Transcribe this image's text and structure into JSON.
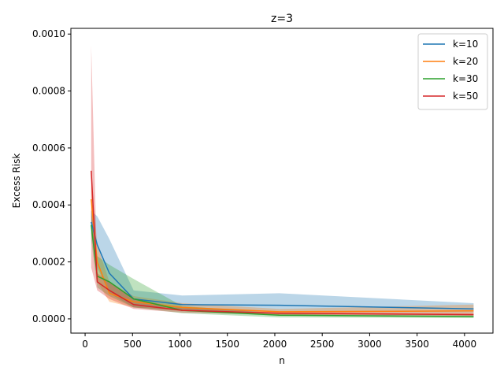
{
  "chart_data": {
    "type": "line",
    "title": "z=3",
    "xlabel": "n",
    "ylabel": "Excess Risk",
    "xlim": [
      -150,
      4300
    ],
    "ylim": [
      -5e-05,
      0.00102
    ],
    "x_ticks": [
      0,
      500,
      1000,
      1500,
      2000,
      2500,
      3000,
      3500,
      4000
    ],
    "x_tick_labels": [
      "0",
      "500",
      "1000",
      "1500",
      "2000",
      "2500",
      "3000",
      "3500",
      "4000"
    ],
    "y_ticks": [
      0,
      0.0002,
      0.0004,
      0.0006,
      0.0008,
      0.001
    ],
    "y_tick_labels": [
      "0.0000",
      "0.0002",
      "0.0004",
      "0.0006",
      "0.0008",
      "0.0010"
    ],
    "grid": false,
    "legend_position": "top-right",
    "x": [
      64,
      128,
      256,
      512,
      1024,
      2048,
      4096
    ],
    "series": [
      {
        "name": "k=10",
        "color": "#1f77b4",
        "values": [
          0.00034,
          0.00026,
          0.00016,
          7e-05,
          5e-05,
          4.8e-05,
          3.5e-05
        ],
        "lower": [
          0.0003,
          0.00018,
          9e-05,
          4e-05,
          3e-05,
          2.5e-05,
          2e-05
        ],
        "upper": [
          0.00038,
          0.00036,
          0.00028,
          0.0001,
          8.2e-05,
          9e-05,
          5.5e-05
        ]
      },
      {
        "name": "k=20",
        "color": "#ff7f0e",
        "values": [
          0.00042,
          0.0002,
          9e-05,
          6e-05,
          4e-05,
          2.5e-05,
          2.8e-05
        ],
        "lower": [
          0.00036,
          0.00013,
          6e-05,
          4e-05,
          2.8e-05,
          1.5e-05,
          1.5e-05
        ],
        "upper": [
          0.00048,
          0.00026,
          0.00013,
          8e-05,
          5.5e-05,
          3.5e-05,
          5e-05
        ]
      },
      {
        "name": "k=30",
        "color": "#2ca02c",
        "values": [
          0.00033,
          0.00015,
          0.00013,
          7e-05,
          3e-05,
          1.3e-05,
          8e-06
        ],
        "lower": [
          0.00028,
          0.00011,
          8e-05,
          4e-05,
          2e-05,
          5e-06,
          3e-06
        ],
        "upper": [
          0.00038,
          0.00022,
          0.00019,
          0.00014,
          4.5e-05,
          2e-05,
          1.5e-05
        ]
      },
      {
        "name": "k=50",
        "color": "#d62728",
        "values": [
          0.00052,
          0.00013,
          0.0001,
          5e-05,
          3e-05,
          2e-05,
          1.5e-05
        ],
        "lower": [
          0.00018,
          0.0001,
          7e-05,
          3.5e-05,
          2.2e-05,
          1.5e-05,
          1e-05
        ],
        "upper": [
          0.00096,
          0.00016,
          0.00013,
          7e-05,
          3.8e-05,
          2.5e-05,
          2e-05
        ]
      }
    ]
  }
}
